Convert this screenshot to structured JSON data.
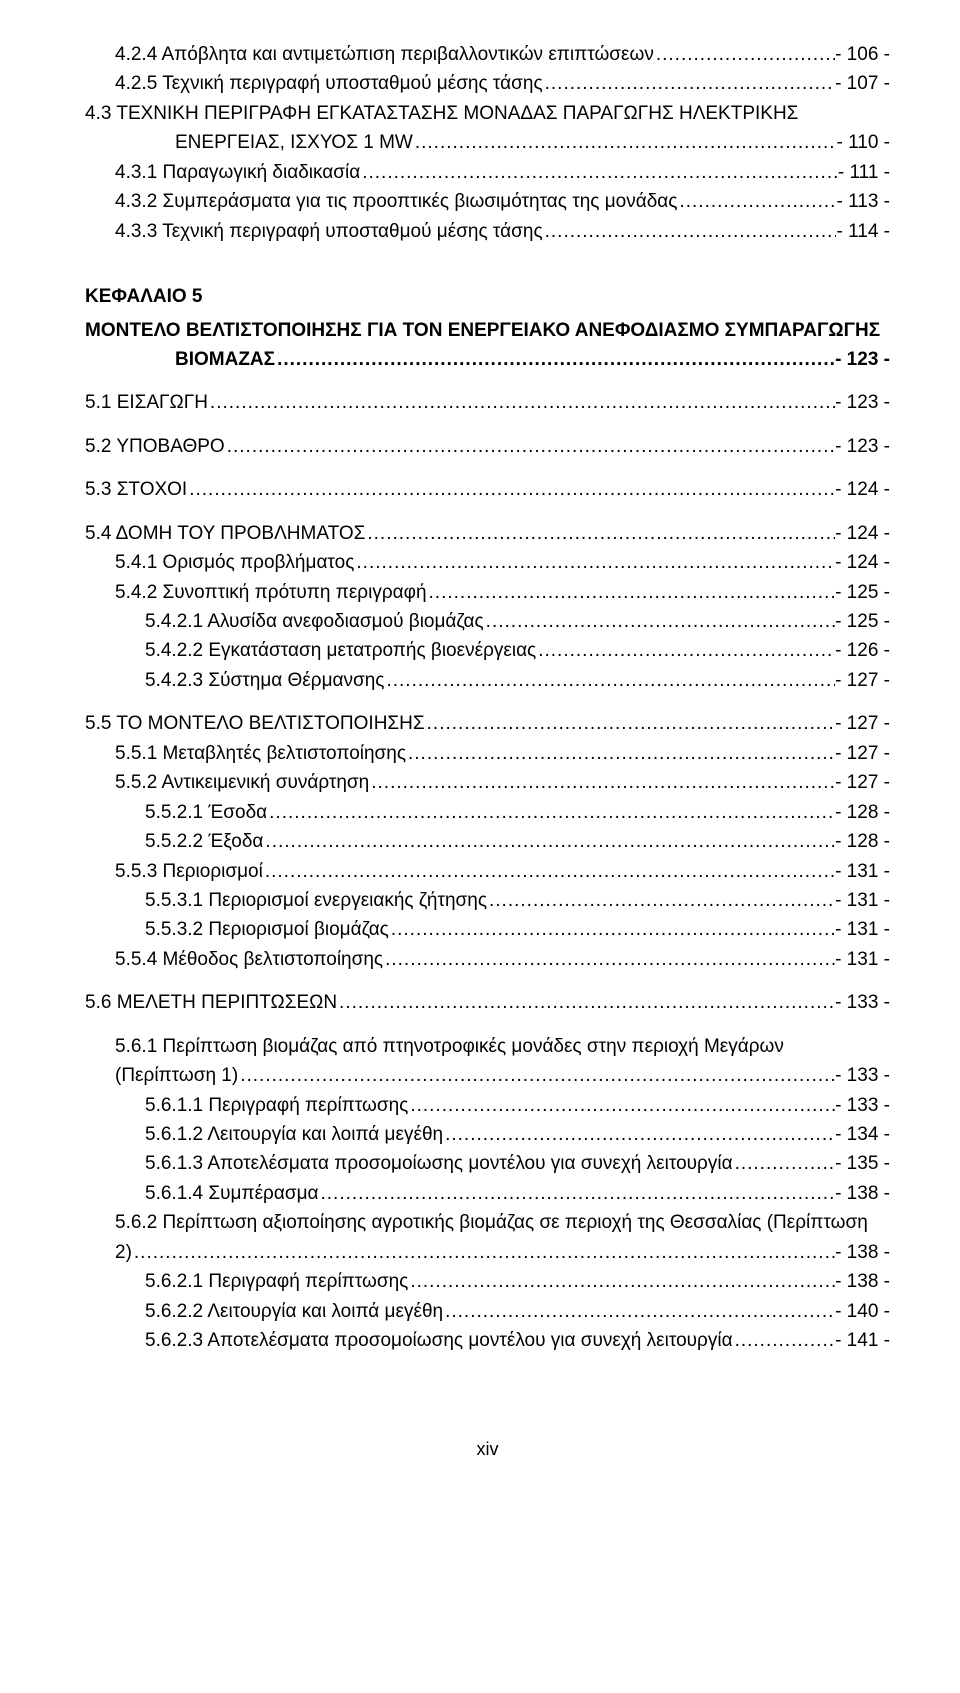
{
  "dots": "...............................................................................................................................................................................................................",
  "top_block": [
    {
      "indent": "lvl-3",
      "label": "4.2.4 Απόβλητα και αντιμετώπιση περιβαλλοντικών επιπτώσεων",
      "page": "- 106 -"
    },
    {
      "indent": "lvl-3",
      "label": "4.2.5 Τεχνική περιγραφή υποσταθμού μέσης τάσης",
      "page": "- 107 -"
    }
  ],
  "section43_line1": "4.3 ΤΕΧΝΙΚΗ ΠΕΡΙΓΡΑΦΗ ΕΓΚΑΤΑΣΤΑΣΗΣ ΜΟΝΑΔΑΣ ΠΑΡΑΓΩΓΗΣ ΗΛΕΚΤΡΙΚΗΣ",
  "section43_row": {
    "indent": "lvl-3-indent2",
    "label": "ΕΝΕΡΓΕΙΑΣ, ΙΣΧΥΟΣ 1 MW",
    "page": "- 110 -"
  },
  "after43": [
    {
      "indent": "lvl-3",
      "label": "4.3.1 Παραγωγική διαδικασία",
      "page": "- 111 -"
    },
    {
      "indent": "lvl-3",
      "label": "4.3.2 Συμπεράσματα για τις προοπτικές βιωσιμότητας της μονάδας",
      "page": "- 113 -"
    },
    {
      "indent": "lvl-3",
      "label": "4.3.3 Τεχνική περιγραφή υποσταθμού μέσης τάσης",
      "page": "- 114 -"
    }
  ],
  "chapter5_title": "ΚΕΦΑΛΑΙΟ 5",
  "chapter5_line1": "ΜΟΝΤΕΛΟ ΒΕΛΤΙΣΤΟΠΟΙΗΣΗΣ ΓΙΑ ΤΟΝ ΕΝΕΡΓΕΙΑΚΟ ΑΝΕΦΟΔΙΑΣΜΟ ΣΥΜΠΑΡΑΓΩΓΗΣ",
  "chapter5_row": {
    "label": "ΒΙΟΜΑΖΑΣ",
    "page": "- 123 -"
  },
  "sections5": [
    {
      "indent": "",
      "label": "5.1 ΕΙΣΑΓΩΓΗ",
      "page": "- 123 -"
    },
    {
      "indent": "",
      "label": "5.2 ΥΠΟΒΑΘΡΟ",
      "page": "- 123 -"
    },
    {
      "indent": "",
      "label": "5.3 ΣΤΟΧΟΙ",
      "page": "- 124 -"
    },
    {
      "indent": "",
      "label": "5.4 ΔΟΜΗ ΤΟΥ ΠΡΟΒΛΗΜΑΤΟΣ",
      "page": "- 124 -"
    },
    {
      "indent": "lvl-3",
      "label": "5.4.1 Ορισμός προβλήματος",
      "page": "- 124 -"
    },
    {
      "indent": "lvl-3",
      "label": "5.4.2 Συνοπτική πρότυπη περιγραφή",
      "page": "- 125 -"
    },
    {
      "indent": "lvl-4",
      "label": "5.4.2.1 Αλυσίδα ανεφοδιασμού βιομάζας",
      "page": "- 125 -"
    },
    {
      "indent": "lvl-4",
      "label": "5.4.2.2 Εγκατάσταση μετατροπής βιοενέργειας",
      "page": "- 126 -"
    },
    {
      "indent": "lvl-4",
      "label": "5.4.2.3 Σύστημα Θέρμανσης",
      "page": "- 127 -"
    },
    {
      "indent": "",
      "label": "5.5 ΤΟ ΜΟΝΤΕΛΟ ΒΕΛΤΙΣΤΟΠΟΙΗΣΗΣ",
      "page": "- 127 -"
    },
    {
      "indent": "lvl-3",
      "label": "5.5.1 Μεταβλητές βελτιστοποίησης",
      "page": "- 127 -"
    },
    {
      "indent": "lvl-3",
      "label": "5.5.2 Αντικειμενική συνάρτηση",
      "page": "- 127 -"
    },
    {
      "indent": "lvl-4",
      "label": "5.5.2.1 Έσοδα",
      "page": "- 128 -"
    },
    {
      "indent": "lvl-4",
      "label": "5.5.2.2 Έξοδα",
      "page": "- 128 -"
    },
    {
      "indent": "lvl-3",
      "label": "5.5.3 Περιορισμοί",
      "page": "- 131 -"
    },
    {
      "indent": "lvl-4",
      "label": "5.5.3.1 Περιορισμοί ενεργειακής ζήτησης",
      "page": "- 131 -"
    },
    {
      "indent": "lvl-4",
      "label": "5.5.3.2 Περιορισμοί βιομάζας",
      "page": "- 131 -"
    },
    {
      "indent": "lvl-3",
      "label": "5.5.4 Μέθοδος βελτιστοποίησης",
      "page": "- 131 -"
    },
    {
      "indent": "",
      "label": "5.6 ΜΕΛΕΤΗ ΠΕΡΙΠΤΩΣΕΩΝ",
      "page": "- 133 -"
    }
  ],
  "sec561_line1": "5.6.1 Περίπτωση βιομάζας από πτηνοτροφικές μονάδες στην περιοχή Μεγάρων",
  "sec561_row": {
    "indent": "lvl-3",
    "label": "(Περίπτωση 1)",
    "page": "- 133 -"
  },
  "after561": [
    {
      "indent": "lvl-4",
      "label": "5.6.1.1 Περιγραφή περίπτωσης",
      "page": "- 133 -"
    },
    {
      "indent": "lvl-4",
      "label": "5.6.1.2 Λειτουργία και λοιπά μεγέθη",
      "page": "- 134 -"
    },
    {
      "indent": "lvl-4",
      "label": "5.6.1.3 Αποτελέσματα προσομοίωσης μοντέλου για συνεχή λειτουργία",
      "page": "- 135 -"
    },
    {
      "indent": "lvl-4",
      "label": "5.6.1.4 Συμπέρασμα",
      "page": "- 138 -"
    }
  ],
  "sec562_line1": "5.6.2 Περίπτωση αξιοποίησης αγροτικής βιομάζας σε περιοχή της Θεσσαλίας (Περίπτωση",
  "sec562_row": {
    "indent": "lvl-3",
    "label": "2)",
    "page": "- 138 -"
  },
  "after562": [
    {
      "indent": "lvl-4",
      "label": "5.6.2.1 Περιγραφή περίπτωσης",
      "page": "- 138 -"
    },
    {
      "indent": "lvl-4",
      "label": "5.6.2.2 Λειτουργία και λοιπά μεγέθη",
      "page": "- 140 -"
    },
    {
      "indent": "lvl-4",
      "label": "5.6.2.3 Αποτελέσματα προσομοίωσης μοντέλου για συνεχή λειτουργία",
      "page": "- 141 -"
    }
  ],
  "footer": "xiv"
}
